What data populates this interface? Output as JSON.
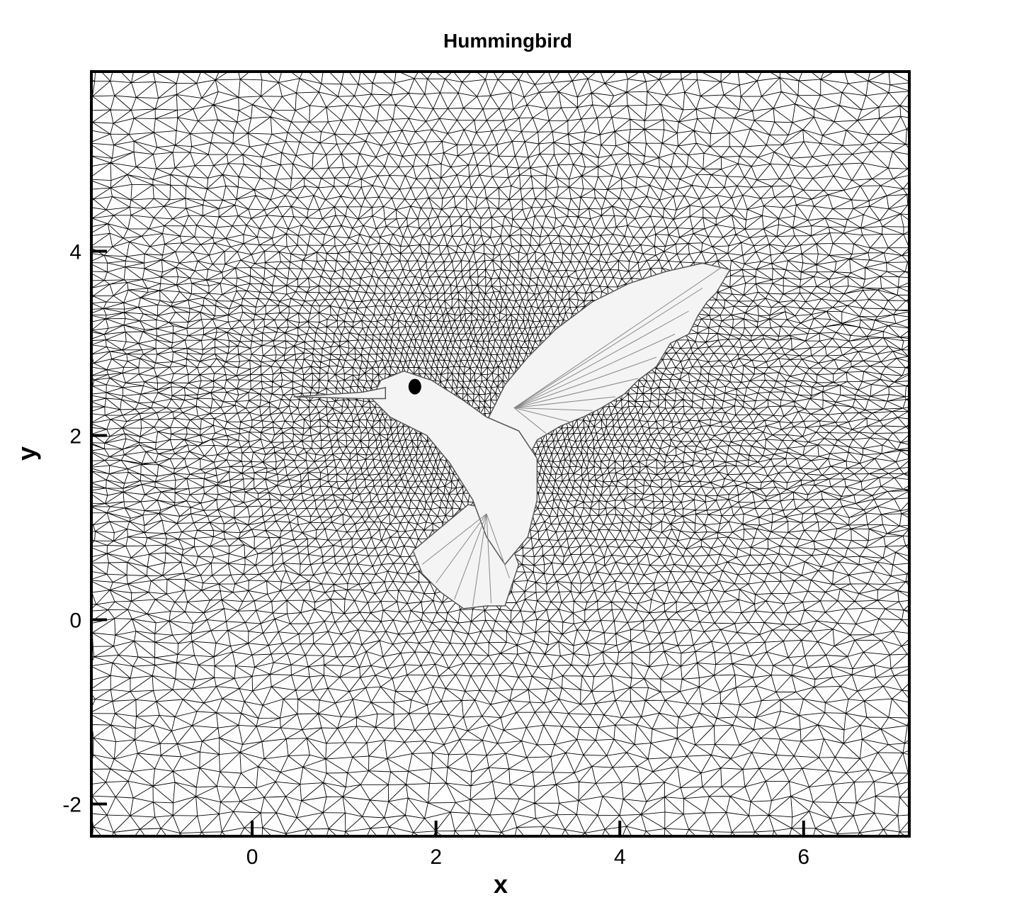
{
  "chart_data": {
    "type": "mesh",
    "title": "Hummingbird",
    "xlabel": "x",
    "ylabel": "y",
    "xlim": [
      -1.75,
      7.15
    ],
    "ylim": [
      -2.35,
      5.95
    ],
    "xticks": [
      0,
      2,
      4,
      6
    ],
    "yticks": [
      -2,
      0,
      2,
      4
    ],
    "xtick_labels": [
      "0",
      "2",
      "4",
      "6"
    ],
    "ytick_labels": [
      "-2",
      "0",
      "2",
      "4"
    ],
    "grid": false,
    "legend": "none",
    "mesh_color": "#000000",
    "body_fill": "#f4f4f4",
    "eye_color": "#000000",
    "body_center": [
      2.6,
      2.4
    ],
    "wing_tip": [
      5.2,
      3.8
    ],
    "beak_tip": [
      0.45,
      2.4
    ],
    "tail_bottom": [
      2.3,
      0.1
    ],
    "eye_position": [
      1.77,
      2.53
    ]
  }
}
